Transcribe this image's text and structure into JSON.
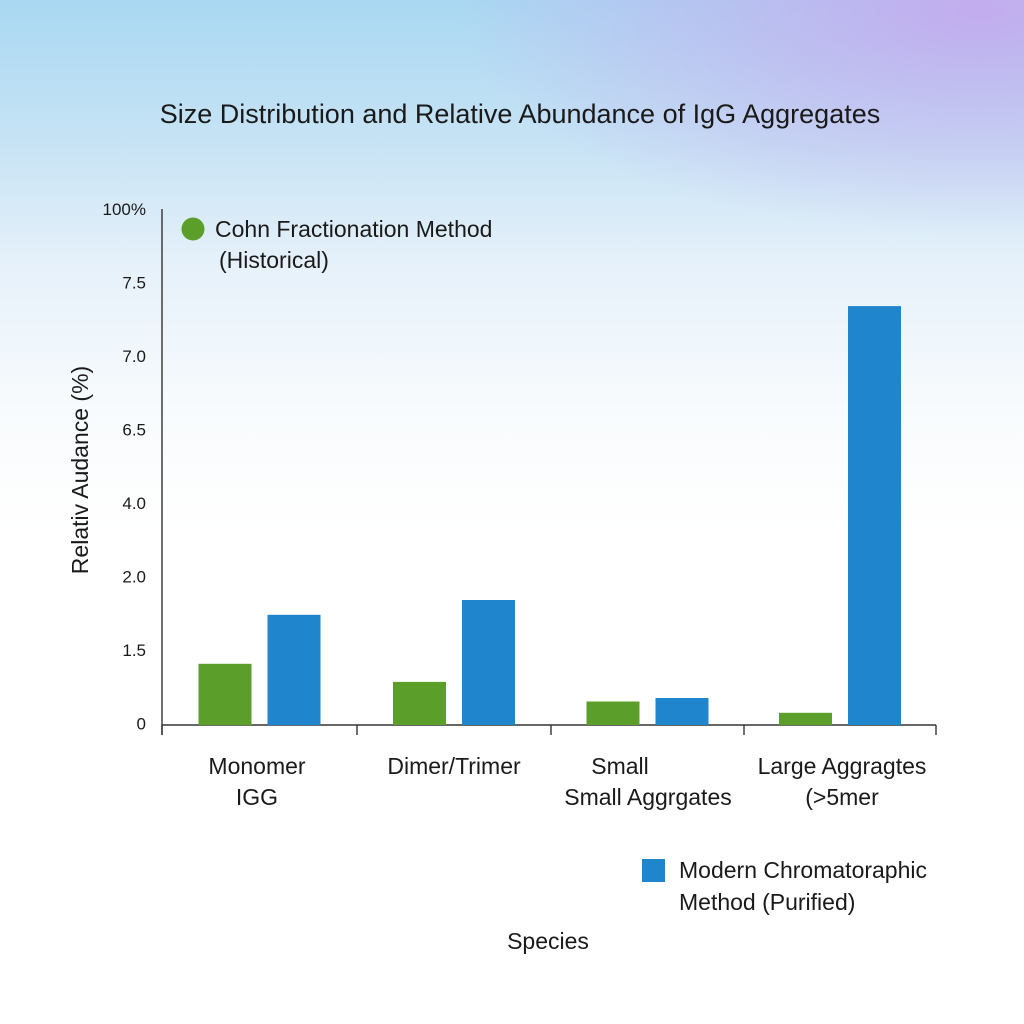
{
  "chart_data": {
    "type": "bar",
    "title": "Size Distribution and Relative Abundance of IgG Aggregates",
    "ylabel": "Relativ Audance (%)",
    "xlabel": "Species",
    "y_ticks": [
      "100%",
      "7.5",
      "7.0",
      "6.5",
      "4.0",
      "2.0",
      "1.5",
      "0"
    ],
    "categories": [
      [
        "Monomer",
        "IGG"
      ],
      [
        "Dimer/Trimer"
      ],
      [
        "Small",
        "Small Aggrgates"
      ],
      [
        "Large Aggragtes",
        "(>5mer"
      ]
    ],
    "series": [
      {
        "name": [
          "Cohn Fractionation Method",
          "(Historical)"
        ],
        "color": "#5b9e2a",
        "marker": "circle",
        "values": [
          1.25,
          0.88,
          0.48,
          0.25
        ]
      },
      {
        "name": [
          "Modern Chromatoraphic",
          "Method  (Purified)"
        ],
        "color": "#1f85cc",
        "marker": "square",
        "values": [
          1.75,
          1.85,
          0.55,
          7.35
        ]
      }
    ],
    "legend_placement": [
      "top-left",
      "bottom-right"
    ],
    "grid": false
  }
}
